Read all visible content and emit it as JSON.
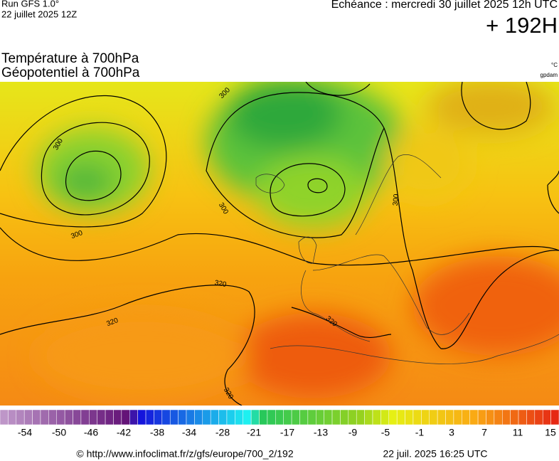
{
  "header": {
    "run": "Run GFS 1.0°",
    "date": "22 juillet 2025 12Z",
    "forecast": "Echéance : mercredi 30 juillet 2025 12h UTC",
    "lead": "+ 192H"
  },
  "titles": [
    "Température à 700hPa",
    "Géopotentiel à 700hPa"
  ],
  "units": [
    "°C",
    "gpdam"
  ],
  "map": {
    "contour_labels": [
      "300",
      "300",
      "300",
      "300",
      "300",
      "320",
      "320",
      "320",
      "320"
    ]
  },
  "colorbar": {
    "labels": [
      "-54",
      "-50",
      "-46",
      "-42",
      "-38",
      "-34",
      "-28",
      "-21",
      "-17",
      "-13",
      "-9",
      "-5",
      "-1",
      "3",
      "7",
      "11",
      "15"
    ]
  },
  "footer": {
    "url": "© http://www.infoclimat.fr/z/gfs/europe/700_2/192",
    "timestamp": "22 juil. 2025 16:25 UTC"
  }
}
